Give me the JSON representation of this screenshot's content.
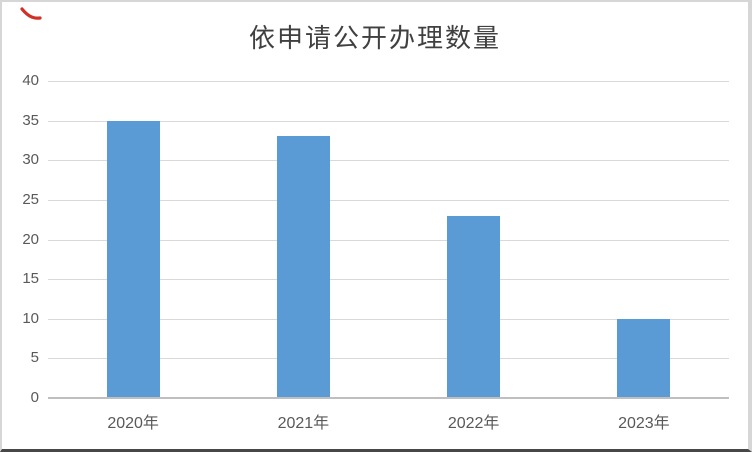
{
  "window": {
    "background": "#ffffff",
    "frame_color": "#d6d6d6",
    "frame_bottom_color": "#474747"
  },
  "decorations": {
    "red_pen_mark_color": "#d03026"
  },
  "chart_data": {
    "type": "bar",
    "title": "依申请公开办理数量",
    "categories": [
      "2020年",
      "2021年",
      "2022年",
      "2023年"
    ],
    "values": [
      35,
      33,
      23,
      10
    ],
    "xlabel": "",
    "ylabel": "",
    "ylim": [
      0,
      40
    ],
    "yticks": [
      0,
      5,
      10,
      15,
      20,
      25,
      30,
      35,
      40
    ],
    "grid": true,
    "legend": "none",
    "bar_color": "#5b9bd5",
    "gridline_color": "#d9d9d9",
    "axis_line_color": "#bfbfbf",
    "tick_label_color": "#595959",
    "title_color": "#404040"
  }
}
